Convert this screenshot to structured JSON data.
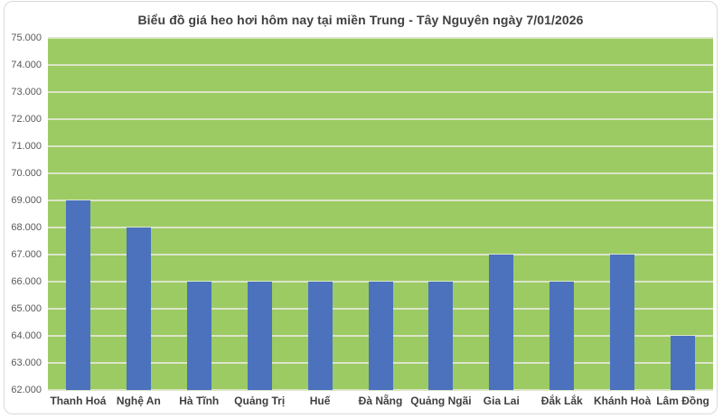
{
  "chart": {
    "title": "Biểu đồ giá heo hơi hôm nay tại miền Trung - Tây Nguyên ngày 7/01/2026"
  },
  "chart_data": {
    "type": "bar",
    "title": "Biểu đồ giá heo hơi hôm nay tại miền Trung - Tây Nguyên ngày 7/01/2026",
    "categories": [
      "Thanh Hoá",
      "Nghệ An",
      "Hà Tĩnh",
      "Quảng Trị",
      "Huế",
      "Đà Nẵng",
      "Quảng Ngãi",
      "Gia Lai",
      "Đắk Lắk",
      "Khánh Hoà",
      "Lâm Đồng"
    ],
    "values": [
      69000,
      68000,
      66000,
      66000,
      66000,
      66000,
      66000,
      67000,
      66000,
      67000,
      64000
    ],
    "xlabel": "",
    "ylabel": "",
    "ylim": [
      62000,
      75000
    ],
    "y_step": 1000,
    "y_tick_labels": [
      "75.000",
      "74.000",
      "73.000",
      "72.000",
      "71.000",
      "70.000",
      "69.000",
      "68.000",
      "67.000",
      "66.000",
      "65.000",
      "64.000",
      "63.000",
      "62.000"
    ],
    "grid": true,
    "legend": false,
    "colors": {
      "bar": "#4C72BE",
      "plot_background": "#9CCB63",
      "gridline": "#dbe5c9",
      "title_text": "#404040",
      "y_tick_text": "#595959",
      "category_text": "#3f3f3f",
      "chart_background": "#ffffff",
      "frame_border": "#d9d9d9"
    }
  }
}
